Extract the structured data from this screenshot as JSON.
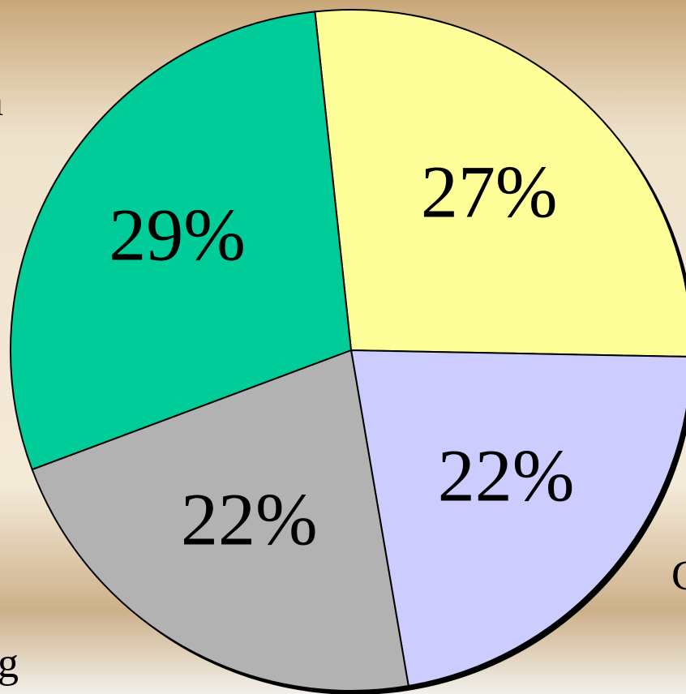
{
  "chart_data": {
    "type": "pie",
    "categories": [
      null,
      "C",
      "g",
      "n"
    ],
    "values": [
      27,
      22,
      22,
      29
    ],
    "value_labels": [
      "27%",
      "22%",
      "22%",
      "29%"
    ],
    "colors": [
      "#ffff99",
      "#ccccff",
      "#b2b2b2",
      "#00cc99"
    ]
  }
}
